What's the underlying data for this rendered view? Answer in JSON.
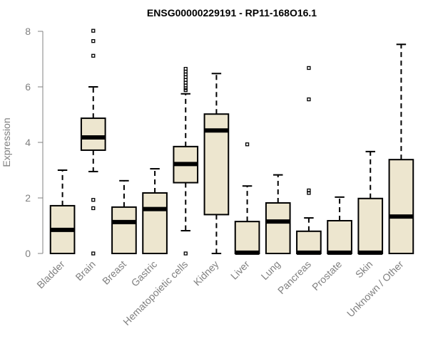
{
  "chart_data": {
    "type": "boxplot",
    "title": "ENSG00000229191 - RP11-168O16.1",
    "xlabel": "",
    "ylabel": "Expression",
    "ylim": [
      0,
      8
    ],
    "yticks": [
      0,
      2,
      4,
      6,
      8
    ],
    "box_color": "#EDE6CF",
    "categories": [
      "Bladder",
      "Brain",
      "Breast",
      "Gastric",
      "Hematopoietic cells",
      "Kidney",
      "Liver",
      "Lung",
      "Pancreas",
      "Prostate",
      "Skin",
      "Unknown / Other"
    ],
    "boxes": [
      {
        "name": "Bladder",
        "min": 0,
        "q1": 0,
        "median": 0.85,
        "q3": 1.72,
        "max": 3.0,
        "outliers": []
      },
      {
        "name": "Brain",
        "min": 2.95,
        "q1": 3.72,
        "median": 4.18,
        "q3": 4.87,
        "max": 6.0,
        "outliers": [
          8.02,
          7.65,
          7.12,
          1.93,
          1.63,
          0.0
        ]
      },
      {
        "name": "Breast",
        "min": 0,
        "q1": 0,
        "median": 1.13,
        "q3": 1.67,
        "max": 2.62,
        "outliers": []
      },
      {
        "name": "Gastric",
        "min": 0,
        "q1": 0,
        "median": 1.6,
        "q3": 2.18,
        "max": 3.05,
        "outliers": []
      },
      {
        "name": "Hematopoietic cells",
        "min": 0.82,
        "q1": 2.55,
        "median": 3.22,
        "q3": 3.85,
        "max": 5.75,
        "outliers": [
          6.65,
          6.55,
          6.45,
          6.35,
          6.25,
          6.15,
          6.05,
          5.95,
          5.88,
          0.0
        ]
      },
      {
        "name": "Kidney",
        "min": 0,
        "q1": 1.4,
        "median": 4.43,
        "q3": 5.02,
        "max": 6.48,
        "outliers": []
      },
      {
        "name": "Liver",
        "min": 0,
        "q1": 0,
        "median": 0.03,
        "q3": 1.15,
        "max": 2.43,
        "outliers": [
          3.93
        ]
      },
      {
        "name": "Lung",
        "min": 0,
        "q1": 0,
        "median": 1.15,
        "q3": 1.82,
        "max": 2.83,
        "outliers": []
      },
      {
        "name": "Pancreas",
        "min": 0,
        "q1": 0,
        "median": 0.03,
        "q3": 0.8,
        "max": 1.28,
        "outliers": [
          6.68,
          5.55,
          2.27,
          2.18
        ]
      },
      {
        "name": "Prostate",
        "min": 0,
        "q1": 0,
        "median": 0.03,
        "q3": 1.18,
        "max": 2.03,
        "outliers": []
      },
      {
        "name": "Skin",
        "min": 0,
        "q1": 0,
        "median": 0.03,
        "q3": 1.98,
        "max": 3.67,
        "outliers": []
      },
      {
        "name": "Unknown / Other",
        "min": 0,
        "q1": 0,
        "median": 1.33,
        "q3": 3.38,
        "max": 7.53,
        "outliers": []
      }
    ]
  }
}
